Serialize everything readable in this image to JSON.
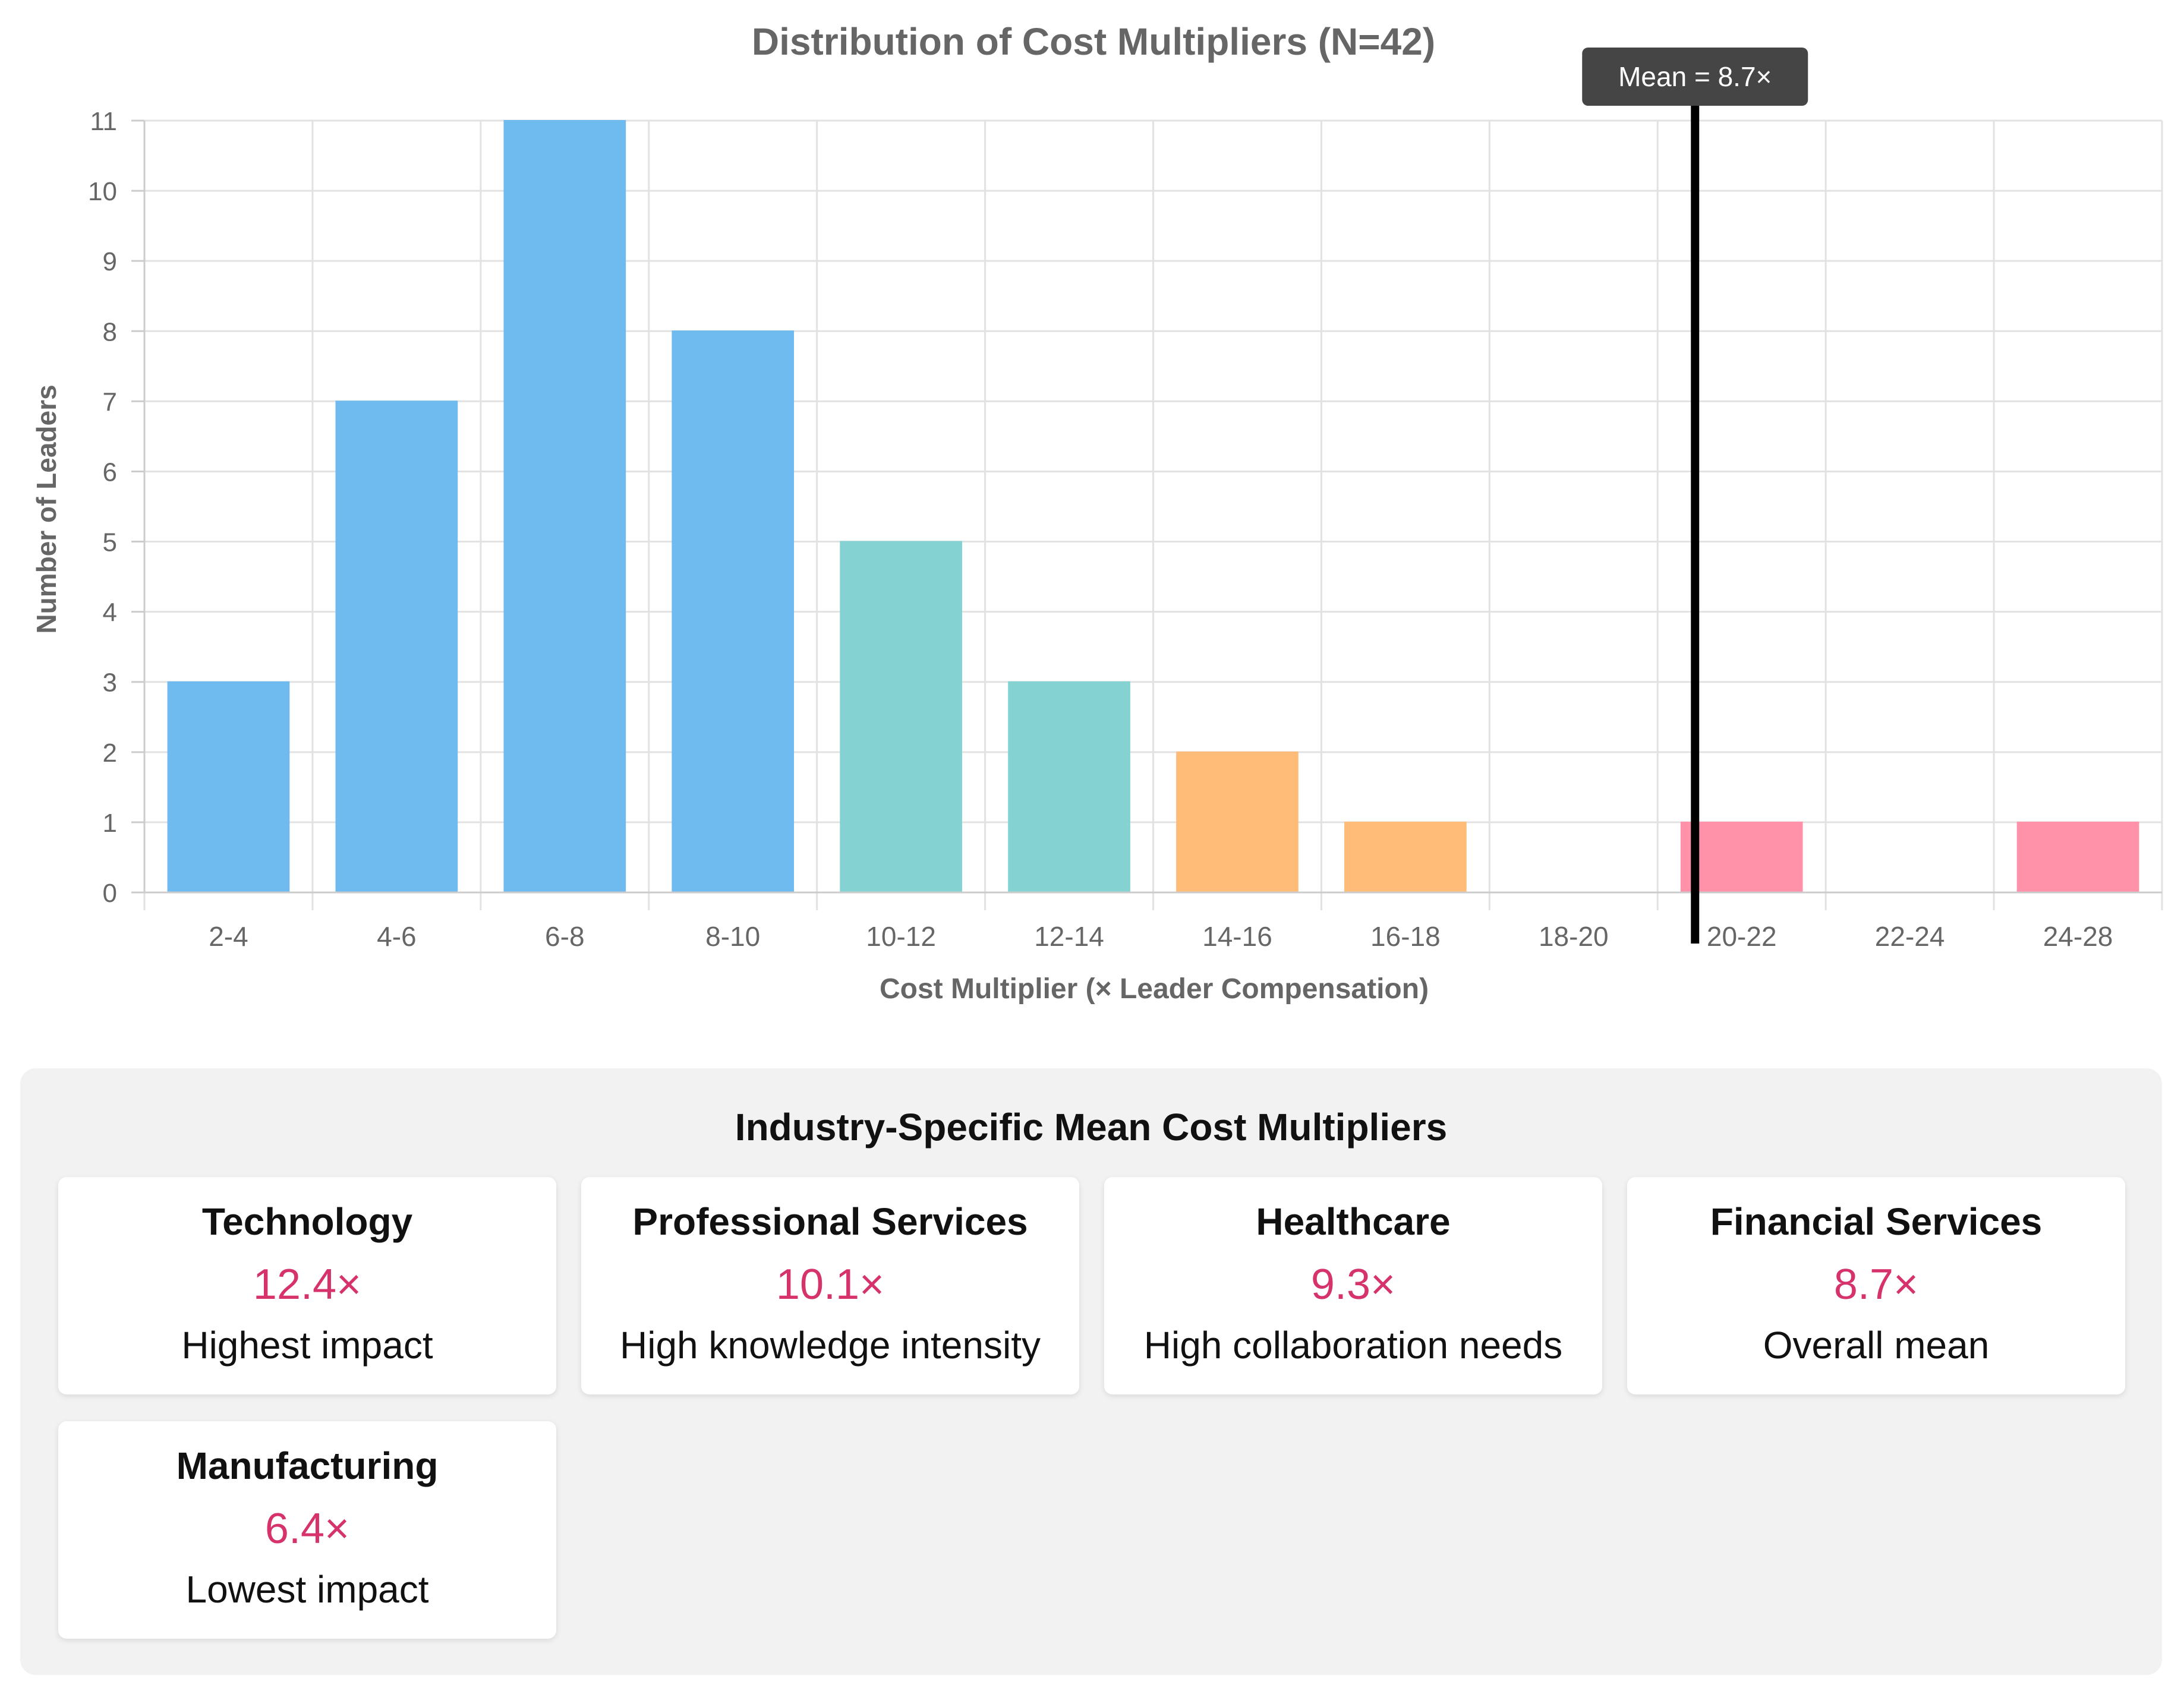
{
  "chart_data": {
    "type": "bar",
    "title": "Distribution of Cost Multipliers (N=42)",
    "xlabel": "Cost Multiplier (× Leader Compensation)",
    "ylabel": "Number of Leaders",
    "ylim": [
      0,
      11
    ],
    "yticks": [
      0,
      1,
      2,
      3,
      4,
      5,
      6,
      7,
      8,
      9,
      10,
      11
    ],
    "categories": [
      "2-4",
      "4-6",
      "6-8",
      "8-10",
      "10-12",
      "12-14",
      "14-16",
      "16-18",
      "18-20",
      "20-22",
      "22-24",
      "24-28"
    ],
    "values": [
      3,
      7,
      11,
      8,
      5,
      3,
      2,
      1,
      0,
      1,
      0,
      1
    ],
    "bar_colors": [
      "#6fbaee",
      "#6fbaee",
      "#6fbaee",
      "#6fbaee",
      "#84d3d2",
      "#84d3d2",
      "#ffbc78",
      "#ffbc78",
      "#ff91a8",
      "#ff91a8",
      "#ff91a8",
      "#ff91a8"
    ],
    "grid": true,
    "legend": "none",
    "annotation": {
      "label": "Mean = 8.7×",
      "category_position": "20-22"
    }
  },
  "industry_panel": {
    "title": "Industry-Specific Mean Cost Multipliers",
    "cards": [
      {
        "name": "Technology",
        "value": "12.4×",
        "note": "Highest impact"
      },
      {
        "name": "Professional Services",
        "value": "10.1×",
        "note": "High knowledge intensity"
      },
      {
        "name": "Healthcare",
        "value": "9.3×",
        "note": "High collaboration needs"
      },
      {
        "name": "Financial Services",
        "value": "8.7×",
        "note": "Overall mean"
      },
      {
        "name": "Manufacturing",
        "value": "6.4×",
        "note": "Lowest impact"
      }
    ]
  }
}
